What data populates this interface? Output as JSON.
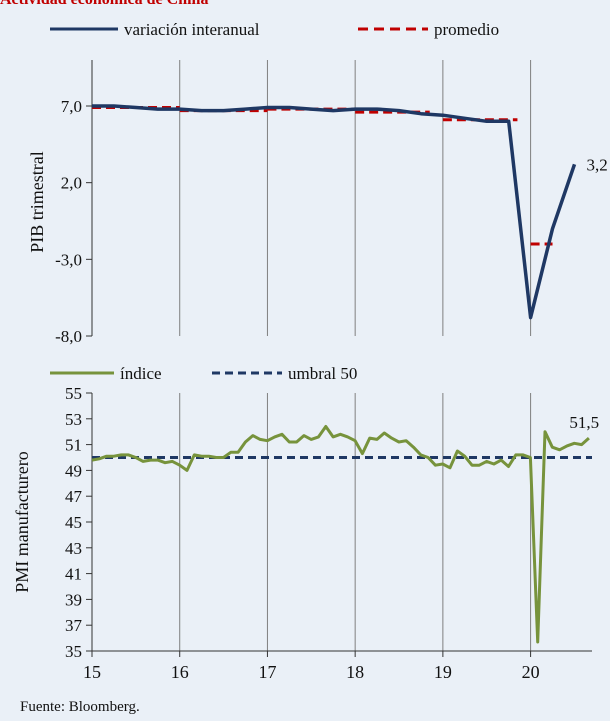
{
  "header": {
    "title": "Actividad económica de China"
  },
  "footer": {
    "source": "Fuente: Bloomberg."
  },
  "colors": {
    "background": "#eaf0f7",
    "gdp_line": "#1f3864",
    "gdp_avg": "#c00000",
    "pmi_line": "#77933c",
    "pmi_threshold": "#1f3864",
    "grid": "#7f7f7f"
  },
  "chart_data": [
    {
      "type": "line",
      "ylabel": "PIB trimestral",
      "ylim": [
        -8,
        10
      ],
      "yticks": [
        -8,
        -3,
        2,
        7
      ],
      "ytick_labels": [
        "-8,0",
        "-3,0",
        "2,0",
        "7,0"
      ],
      "xlim": [
        15,
        20.7
      ],
      "grid": "vertical",
      "legend_position": "top",
      "series": [
        {
          "name": "variación interanual",
          "style": "solid",
          "x": [
            15.0,
            15.25,
            15.5,
            15.75,
            16.0,
            16.25,
            16.5,
            16.75,
            17.0,
            17.25,
            17.5,
            17.75,
            18.0,
            18.25,
            18.5,
            18.75,
            19.0,
            19.25,
            19.5,
            19.75,
            20.0,
            20.25,
            20.5
          ],
          "values": [
            7.0,
            7.0,
            6.9,
            6.8,
            6.8,
            6.7,
            6.7,
            6.8,
            6.9,
            6.9,
            6.8,
            6.7,
            6.8,
            6.8,
            6.7,
            6.5,
            6.4,
            6.2,
            6.0,
            6.0,
            -6.8,
            -1.0,
            3.2
          ]
        },
        {
          "name": "promedio",
          "style": "dashed",
          "segments": [
            {
              "x": [
                15.0,
                16.0
              ],
              "y": 6.9
            },
            {
              "x": [
                16.0,
                17.0
              ],
              "y": 6.7
            },
            {
              "x": [
                17.0,
                18.0
              ],
              "y": 6.8
            },
            {
              "x": [
                18.0,
                18.85
              ],
              "y": 6.6
            },
            {
              "x": [
                19.0,
                19.85
              ],
              "y": 6.1
            },
            {
              "x": [
                20.0,
                20.25
              ],
              "y": -2.0
            }
          ]
        }
      ],
      "annotations": [
        {
          "text": "3,2",
          "x": 20.5,
          "y": 3.2
        }
      ]
    },
    {
      "type": "line",
      "ylabel": "PMI manufacturero",
      "ylim": [
        35,
        55
      ],
      "yticks": [
        35,
        37,
        39,
        41,
        43,
        45,
        47,
        49,
        51,
        53,
        55
      ],
      "ytick_labels": [
        "35",
        "37",
        "39",
        "41",
        "43",
        "45",
        "47",
        "49",
        "51",
        "53",
        "55"
      ],
      "xlim": [
        15,
        20.7
      ],
      "xticks": [
        15,
        16,
        17,
        18,
        19,
        20
      ],
      "xtick_labels": [
        "15",
        "16",
        "17",
        "18",
        "19",
        "20"
      ],
      "grid": "vertical",
      "legend_position": "top",
      "series": [
        {
          "name": "índice",
          "style": "solid",
          "x_start": 15.0,
          "x_step": 0.0833,
          "values": [
            49.8,
            49.9,
            50.1,
            50.1,
            50.2,
            50.2,
            50.0,
            49.7,
            49.8,
            49.8,
            49.6,
            49.7,
            49.4,
            49.0,
            50.2,
            50.1,
            50.1,
            50.0,
            50.0,
            50.4,
            50.4,
            51.2,
            51.7,
            51.4,
            51.3,
            51.6,
            51.8,
            51.2,
            51.2,
            51.7,
            51.4,
            51.6,
            52.4,
            51.6,
            51.8,
            51.6,
            51.3,
            50.3,
            51.5,
            51.4,
            51.9,
            51.5,
            51.2,
            51.3,
            50.8,
            50.2,
            50.0,
            49.4,
            49.5,
            49.2,
            50.5,
            50.1,
            49.4,
            49.4,
            49.7,
            49.5,
            49.8,
            49.3,
            50.2,
            50.2,
            50.0,
            35.7,
            52.0,
            50.8,
            50.6,
            50.9,
            51.1,
            51.0,
            51.5
          ],
          "x": null
        },
        {
          "name": "umbral 50",
          "style": "dashed",
          "x": [
            15.0,
            20.7
          ],
          "values": [
            50,
            50
          ]
        }
      ],
      "annotations": [
        {
          "text": "51,5",
          "x": 20.67,
          "y": 51.5
        }
      ]
    }
  ]
}
